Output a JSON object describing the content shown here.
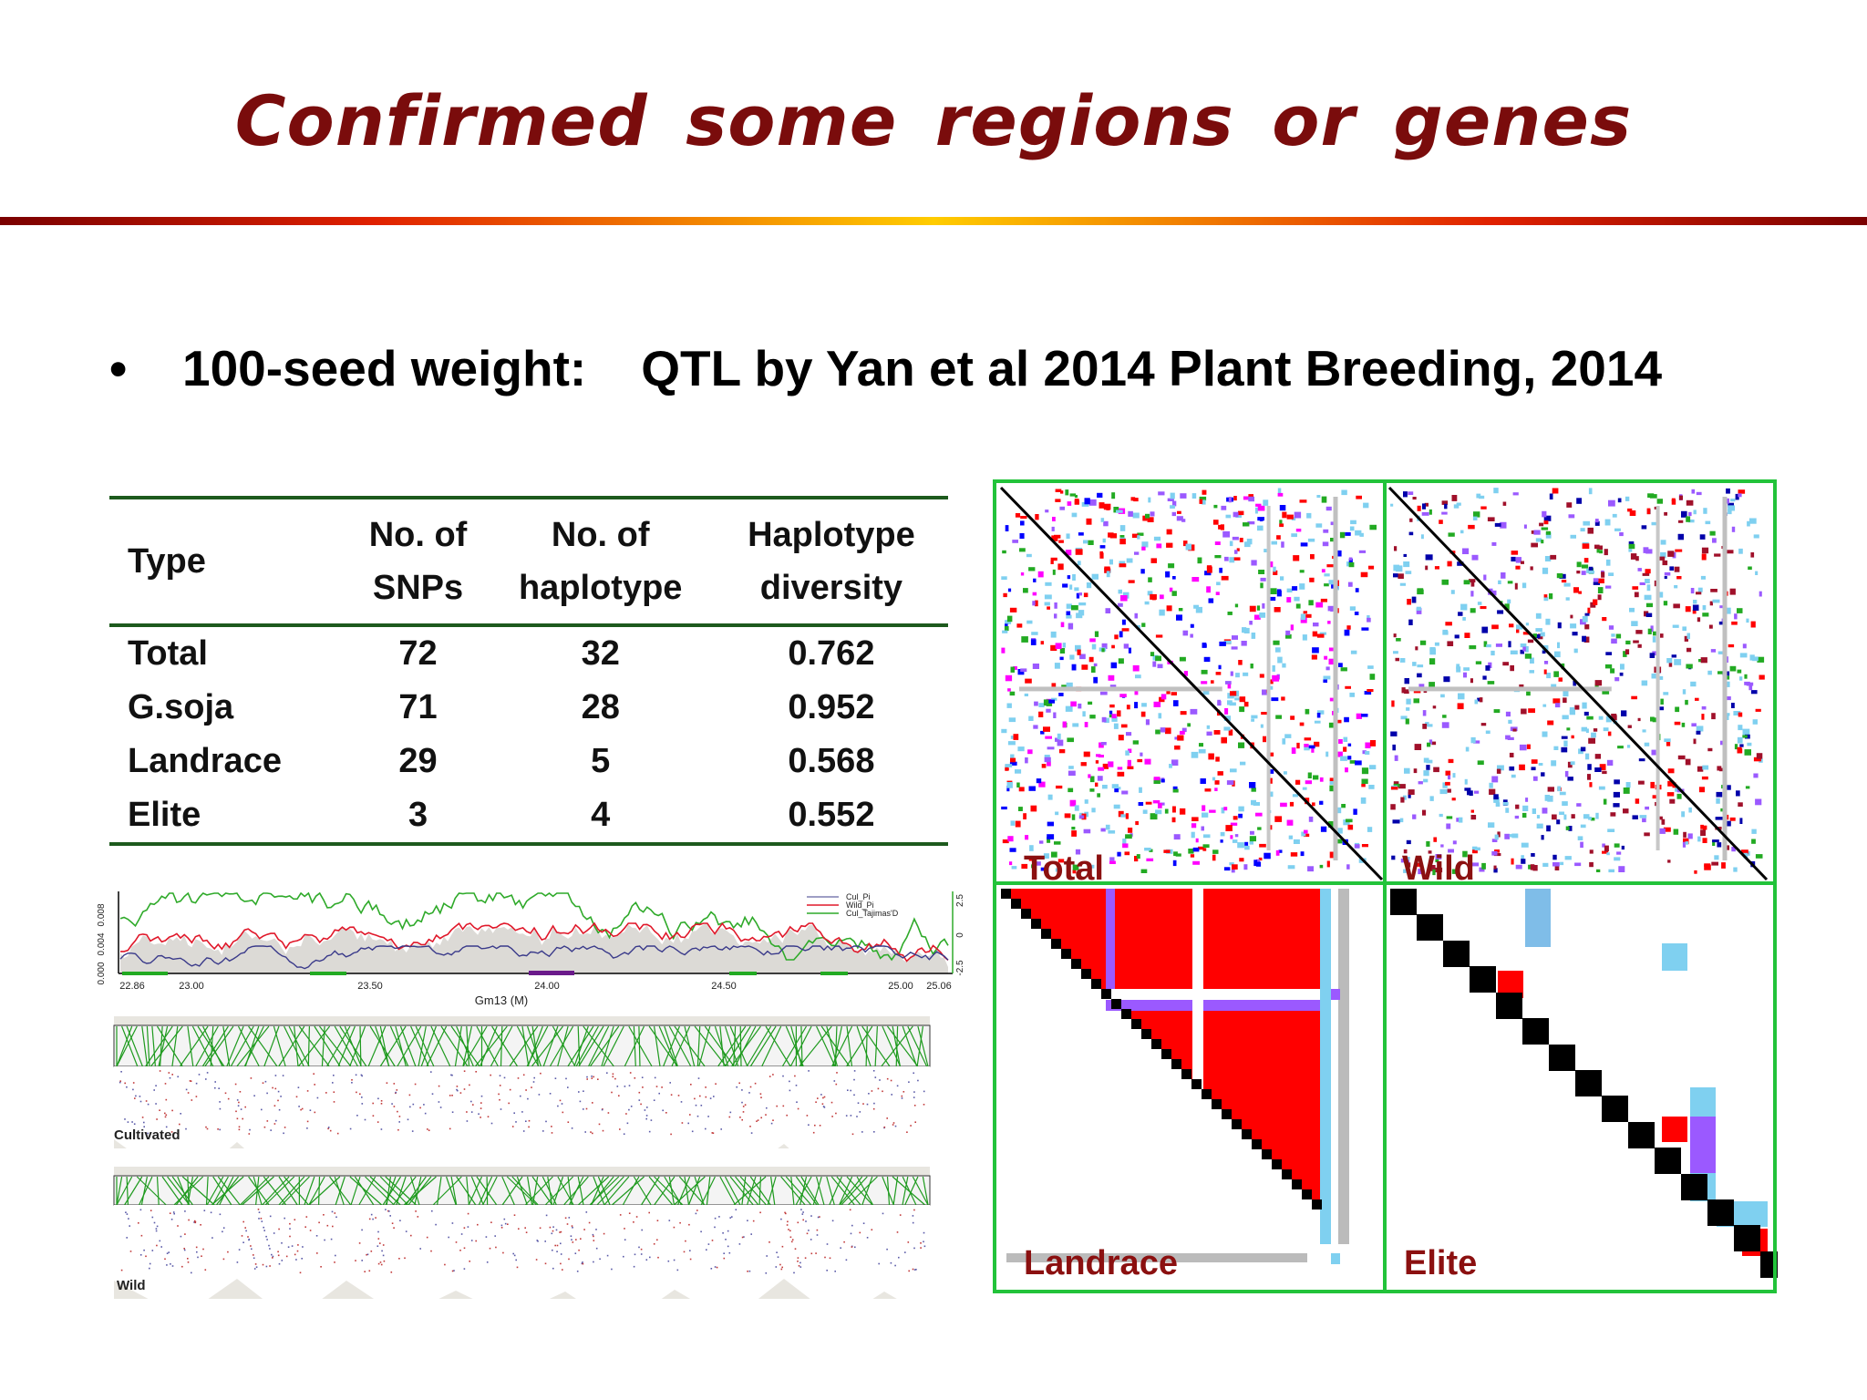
{
  "title": "Confirmed some regions or genes",
  "bullet": {
    "marker": "•",
    "label": "100-seed weight:",
    "text": "QTL by Yan et al 2014 Plant Breeding, 2014"
  },
  "table": {
    "headers": [
      {
        "line1": "Type",
        "line2": ""
      },
      {
        "line1": "No. of",
        "line2": "SNPs"
      },
      {
        "line1": "No. of",
        "line2": "haplotype"
      },
      {
        "line1": "Haplotype",
        "line2": "diversity"
      }
    ],
    "rows": [
      {
        "type": "Total",
        "snps": "72",
        "haplotypes": "32",
        "diversity": "0.762"
      },
      {
        "type": "G.soja",
        "snps": "71",
        "haplotypes": "28",
        "diversity": "0.952"
      },
      {
        "type": "Landrace",
        "snps": "29",
        "haplotypes": "5",
        "diversity": "0.568"
      },
      {
        "type": "Elite",
        "snps": "3",
        "haplotypes": "4",
        "diversity": "0.552"
      }
    ]
  },
  "diversity_plot": {
    "legend": [
      "Cul_Pi",
      "Wild_Pi",
      "Cul_Tajimas'D"
    ],
    "x_ticks": [
      "22.86",
      "23.00",
      "23.50",
      "24.00",
      "24.50",
      "25.00",
      "25.06"
    ],
    "xlabel": "Gm13 (M)",
    "y_ticks": [
      "0.000",
      "0.004",
      "0.008"
    ],
    "y2_ticks": [
      "-2.5",
      "0",
      "2.5"
    ],
    "y2_label": "Cul_Tajimas' D",
    "colors": {
      "cul_pi": "#7f7fb0",
      "wild_pi": "#e0182a",
      "tajima": "#2faa2a"
    }
  },
  "ld_panels": [
    {
      "label": "Cultivated"
    },
    {
      "label": "Wild"
    }
  ],
  "heatmaps": [
    {
      "label": "Total"
    },
    {
      "label": "Wild"
    },
    {
      "label": "Landrace"
    },
    {
      "label": "Elite"
    }
  ],
  "colors": {
    "title": "#7a0c0c",
    "frame_green": "#22c33a",
    "ld_red": "#ff0000",
    "ld_purple": "#9b59ff",
    "ld_lightblue": "#7fd0f0",
    "label_red": "#8b1010"
  }
}
